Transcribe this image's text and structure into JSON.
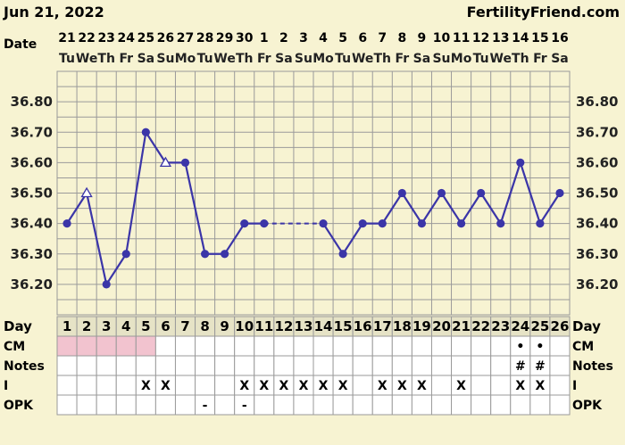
{
  "header": {
    "date": "Jun 21, 2022",
    "brand": "FertilityFriend.com"
  },
  "labels": {
    "date_row": "Date",
    "day_row": "Day",
    "cm_row": "CM",
    "notes_row": "Notes",
    "i_row": "I",
    "opk_row": "OPK"
  },
  "colors": {
    "background": "#F7F3D2",
    "grid": "#9A9A9A",
    "line": "#3B35A8",
    "day_cell": "#E6E3C6",
    "highlight": "#F2C3CF"
  },
  "dates": [
    {
      "n": "21",
      "d": "Tu"
    },
    {
      "n": "22",
      "d": "We"
    },
    {
      "n": "23",
      "d": "Th"
    },
    {
      "n": "24",
      "d": "Fr"
    },
    {
      "n": "25",
      "d": "Sa"
    },
    {
      "n": "26",
      "d": "Su"
    },
    {
      "n": "27",
      "d": "Mo"
    },
    {
      "n": "28",
      "d": "Tu"
    },
    {
      "n": "29",
      "d": "We"
    },
    {
      "n": "30",
      "d": "Th"
    },
    {
      "n": "1",
      "d": "Fr"
    },
    {
      "n": "2",
      "d": "Sa"
    },
    {
      "n": "3",
      "d": "Su"
    },
    {
      "n": "4",
      "d": "Mo"
    },
    {
      "n": "5",
      "d": "Tu"
    },
    {
      "n": "6",
      "d": "We"
    },
    {
      "n": "7",
      "d": "Th"
    },
    {
      "n": "8",
      "d": "Fr"
    },
    {
      "n": "9",
      "d": "Sa"
    },
    {
      "n": "10",
      "d": "Su"
    },
    {
      "n": "11",
      "d": "Mo"
    },
    {
      "n": "12",
      "d": "Tu"
    },
    {
      "n": "13",
      "d": "We"
    },
    {
      "n": "14",
      "d": "Th"
    },
    {
      "n": "15",
      "d": "Fr"
    },
    {
      "n": "16",
      "d": "Sa"
    }
  ],
  "days": [
    "1",
    "2",
    "3",
    "4",
    "5",
    "6",
    "7",
    "8",
    "9",
    "10",
    "11",
    "12",
    "13",
    "14",
    "15",
    "16",
    "17",
    "18",
    "19",
    "20",
    "21",
    "22",
    "23",
    "24",
    "25",
    "26"
  ],
  "rows": {
    "cm": [
      "",
      "",
      "",
      "",
      "",
      "",
      "",
      "",
      "",
      "",
      "",
      "",
      "",
      "",
      "",
      "",
      "",
      "",
      "",
      "",
      "",
      "",
      "",
      "•",
      "•",
      ""
    ],
    "notes": [
      "",
      "",
      "",
      "",
      "",
      "",
      "",
      "",
      "",
      "",
      "",
      "",
      "",
      "",
      "",
      "",
      "",
      "",
      "",
      "",
      "",
      "",
      "",
      "#",
      "#",
      ""
    ],
    "i": [
      "",
      "",
      "",
      "",
      "X",
      "X",
      "",
      "",
      "",
      "X",
      "X",
      "X",
      "X",
      "X",
      "X",
      "",
      "X",
      "X",
      "X",
      "",
      "X",
      "",
      "",
      "X",
      "X",
      ""
    ],
    "opk": [
      "",
      "",
      "",
      "",
      "",
      "",
      "",
      "-",
      "",
      "-",
      "",
      "",
      "",
      "",
      "",
      "",
      "",
      "",
      "",
      "",
      "",
      "",
      "",
      "",
      "",
      ""
    ]
  },
  "cm_highlight_days": [
    1,
    2,
    3,
    4,
    5
  ],
  "chart_data": {
    "type": "line",
    "ylim": [
      36.1,
      36.9
    ],
    "yticks": [
      "36.20",
      "36.30",
      "36.40",
      "36.50",
      "36.60",
      "36.70",
      "36.80"
    ],
    "x": [
      1,
      2,
      3,
      4,
      5,
      6,
      7,
      8,
      9,
      10,
      11,
      12,
      13,
      14,
      15,
      16,
      17,
      18,
      19,
      20,
      21,
      22,
      23,
      24,
      25,
      26
    ],
    "values": [
      36.4,
      36.5,
      36.2,
      36.3,
      36.7,
      36.6,
      36.6,
      36.3,
      36.3,
      36.4,
      36.4,
      null,
      null,
      36.4,
      36.3,
      36.4,
      36.4,
      36.5,
      36.4,
      36.5,
      36.4,
      36.5,
      36.4,
      36.6,
      36.4,
      36.5
    ],
    "open_markers": [
      2,
      6
    ],
    "dashed_gaps": [
      [
        11,
        14
      ]
    ]
  }
}
